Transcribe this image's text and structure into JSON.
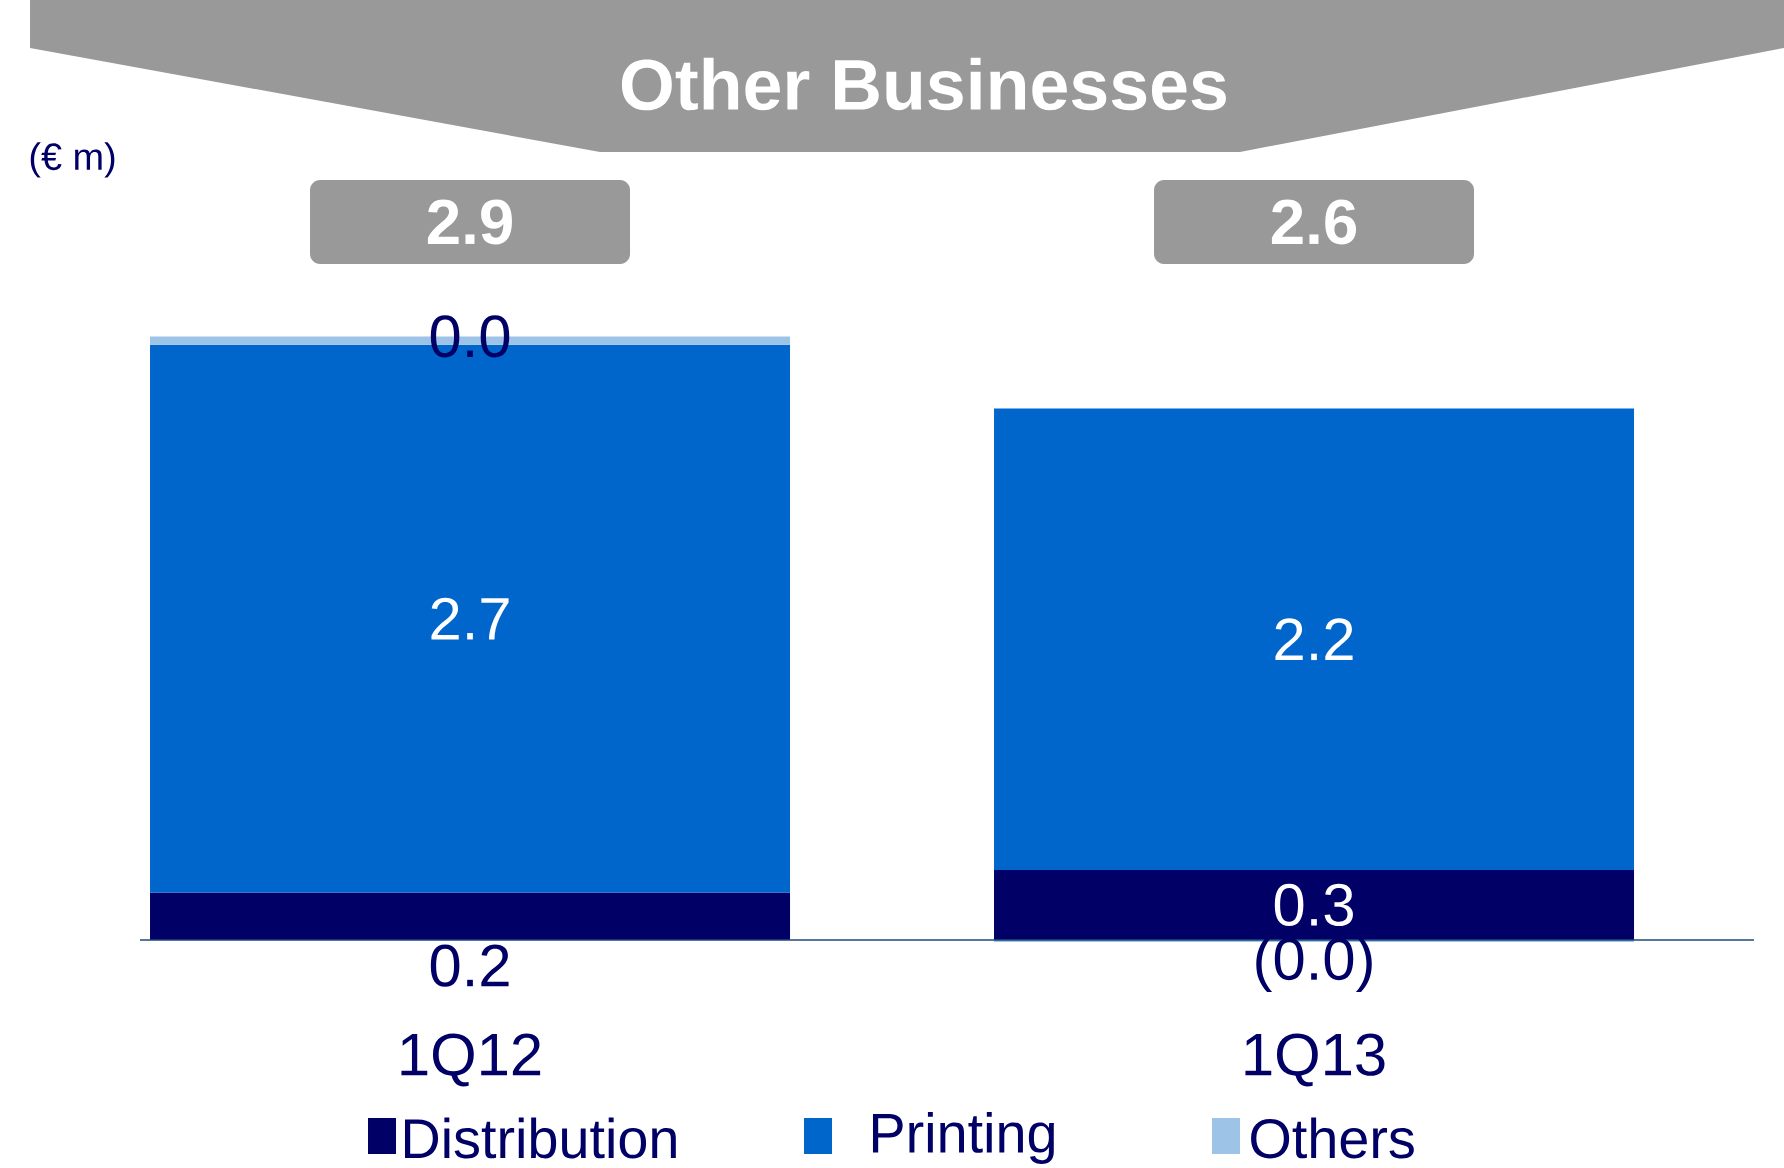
{
  "chart_data": {
    "type": "bar",
    "title": "Other Businesses",
    "ylabel": "(€ m)",
    "stacked": true,
    "categories": [
      "1Q12",
      "1Q13"
    ],
    "series": [
      {
        "name": "Distribution",
        "color": "#000066",
        "values": [
          0.23,
          0.34
        ],
        "value_labels": [
          "0.2",
          "0.3"
        ]
      },
      {
        "name": "Printing",
        "color": "#0066cc",
        "values": [
          2.66,
          2.24
        ],
        "value_labels": [
          "2.7",
          "2.2"
        ]
      },
      {
        "name": "Others",
        "color": "#9dc3e6",
        "values": [
          0.04,
          -0.01
        ],
        "value_labels": [
          "0.0",
          "(0.0)"
        ]
      }
    ],
    "totals": [
      "2.9",
      "2.6"
    ],
    "legend": "bottom"
  }
}
